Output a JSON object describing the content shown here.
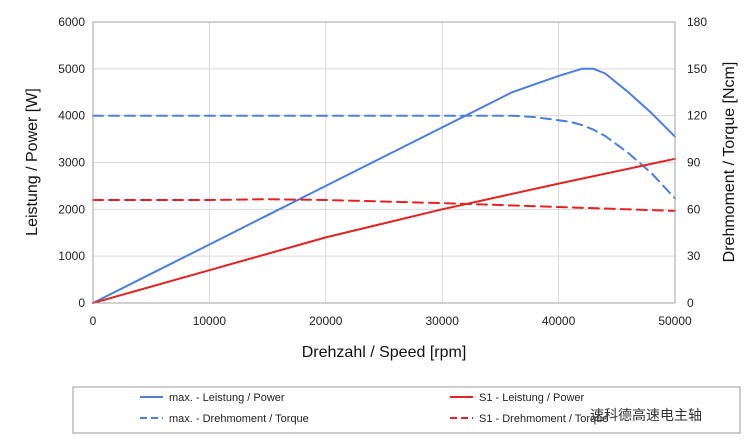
{
  "chart_data": {
    "type": "line",
    "xlabel": "Drehzahl / Speed [rpm]",
    "ylabel_left": "Leistung / Power [W]",
    "ylabel_right": "Drehmoment / Torque [Ncm]",
    "xlim": [
      0,
      50000
    ],
    "ylim_left": [
      0,
      6000
    ],
    "ylim_right": [
      0,
      180
    ],
    "x_ticks": [
      "0",
      "10000",
      "20000",
      "30000",
      "40000",
      "50000"
    ],
    "y_left_ticks": [
      "0",
      "1000",
      "2000",
      "3000",
      "4000",
      "5000",
      "6000"
    ],
    "y_right_ticks": [
      "0",
      "30",
      "60",
      "90",
      "120",
      "150",
      "180"
    ],
    "grid": true,
    "legend_position": "bottom",
    "series": [
      {
        "name": "max. - Leistung / Power",
        "axis": "left",
        "color": "#4a7fe0",
        "style": "solid",
        "x": [
          0,
          5000,
          10000,
          15000,
          20000,
          25000,
          30000,
          35000,
          36000,
          40000,
          42000,
          43000,
          44000,
          46000,
          48000,
          50000
        ],
        "y": [
          0,
          625,
          1250,
          1875,
          2500,
          3125,
          3750,
          4375,
          4500,
          4850,
          5000,
          5000,
          4900,
          4500,
          4050,
          3550
        ]
      },
      {
        "name": "max. - Drehmoment / Torque",
        "axis": "right",
        "color": "#4a7fe0",
        "style": "dashed",
        "x": [
          0,
          10000,
          20000,
          30000,
          36000,
          38000,
          40000,
          41000,
          42000,
          43000,
          44000,
          46000,
          48000,
          50000
        ],
        "y": [
          120,
          120,
          120,
          120,
          120,
          119,
          117,
          116,
          114,
          111,
          107,
          96,
          83,
          67
        ]
      },
      {
        "name": "S1 - Leistung / Power",
        "axis": "left",
        "color": "#e32222",
        "style": "solid",
        "x": [
          0,
          10000,
          20000,
          30000,
          40000,
          50000
        ],
        "y": [
          0,
          700,
          1400,
          2000,
          2550,
          3080
        ]
      },
      {
        "name": "S1 - Drehmoment / Torque",
        "axis": "right",
        "color": "#e32222",
        "style": "dashed",
        "x": [
          0,
          10000,
          15000,
          20000,
          30000,
          40000,
          50000
        ],
        "y": [
          66,
          66,
          66.5,
          66,
          64,
          61.5,
          59
        ]
      }
    ],
    "watermark": "速科德高速电主轴"
  }
}
